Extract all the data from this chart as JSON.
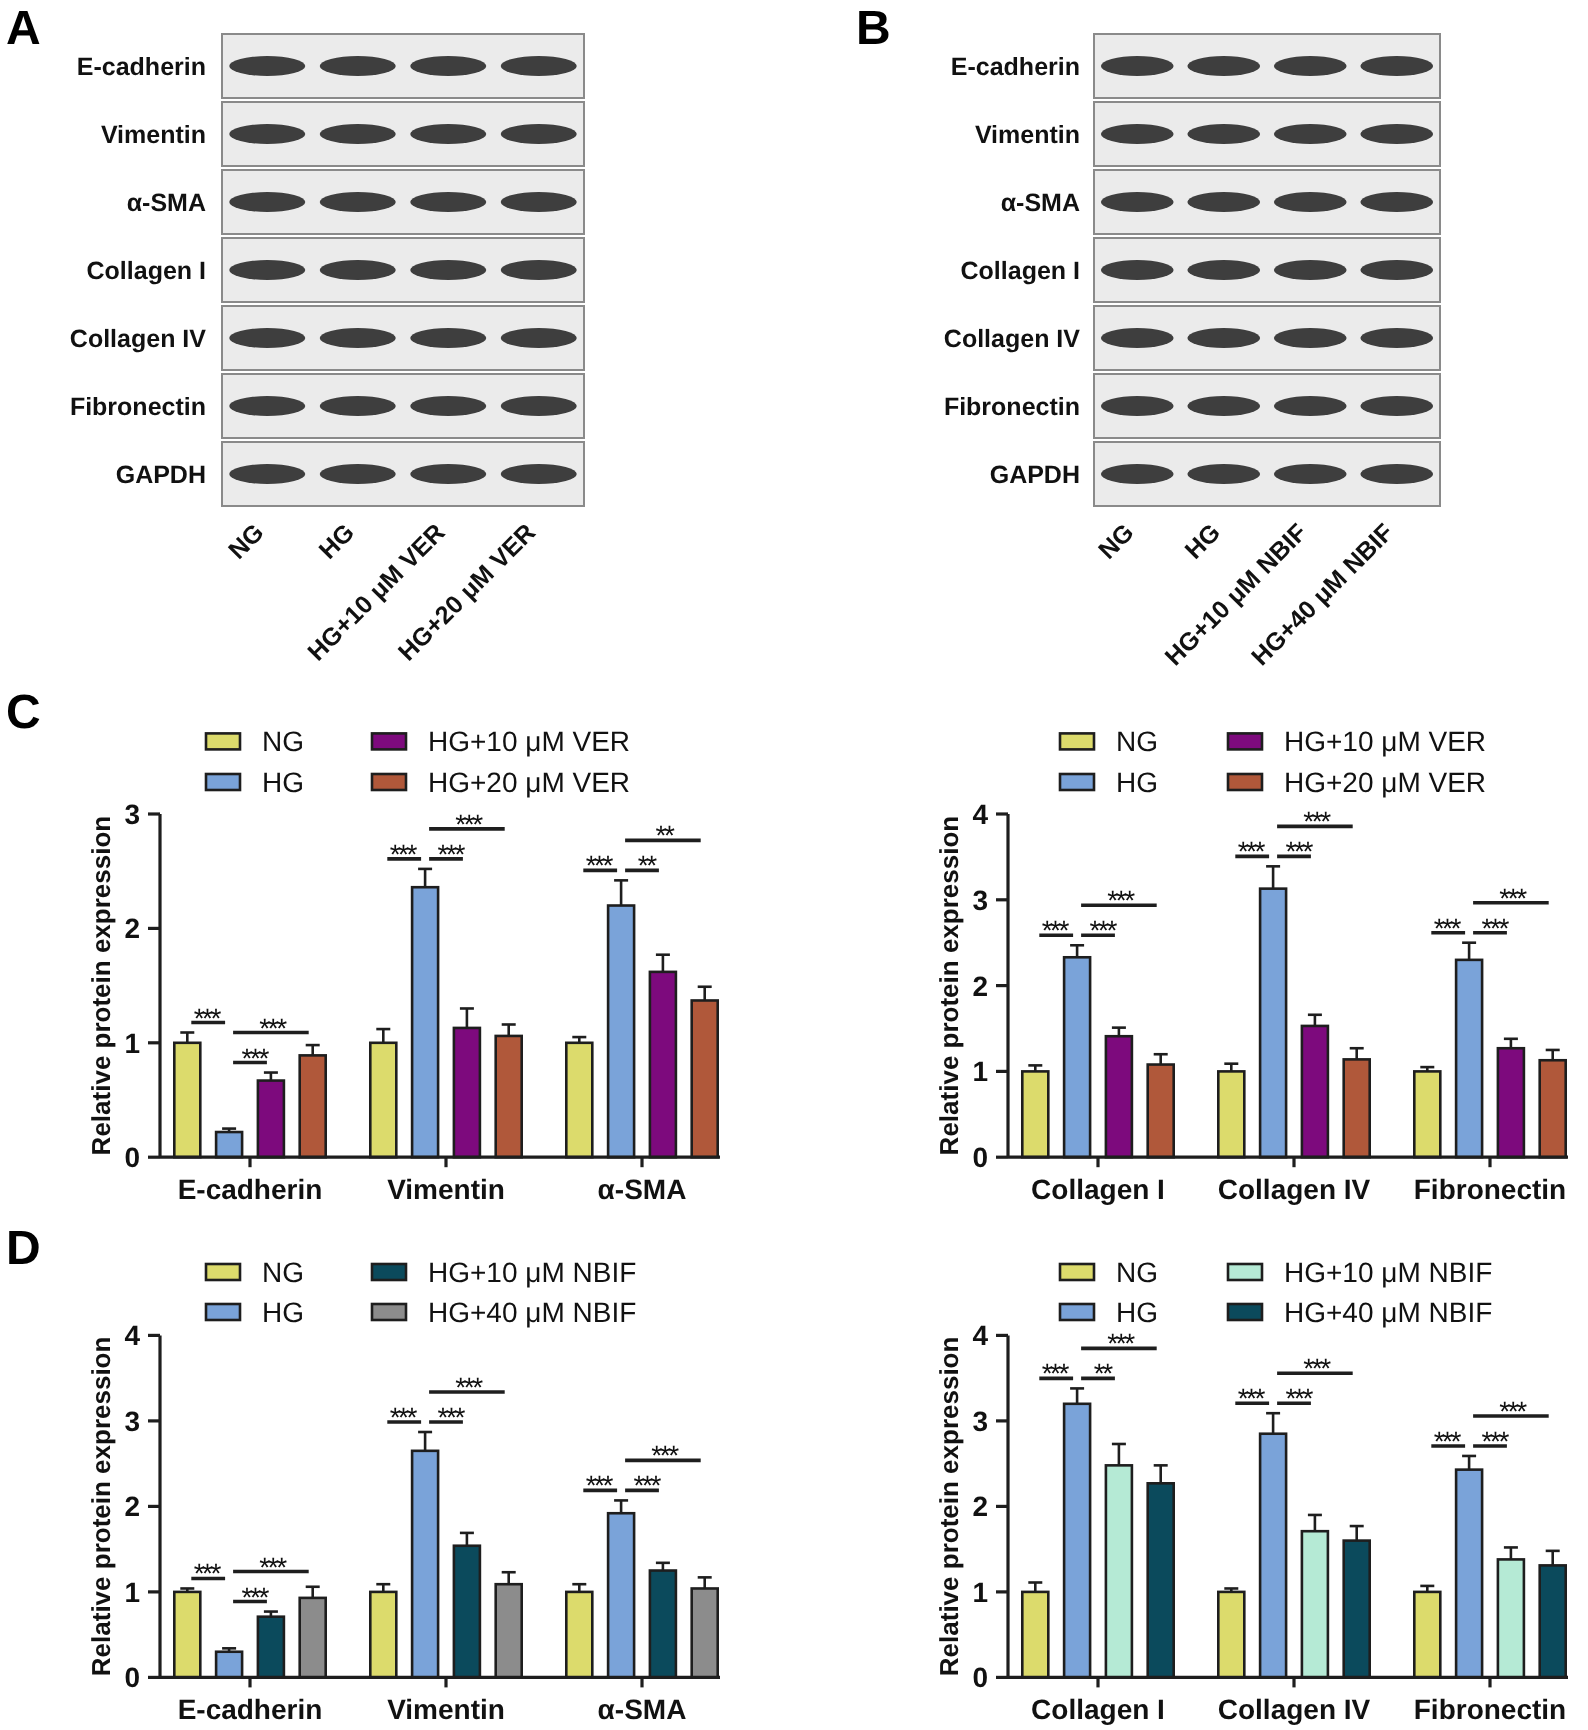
{
  "chart_data": [
    {
      "type": "other",
      "title": "A",
      "categories": [
        "NG",
        "HG",
        "HG+10 μM VER",
        "HG+20 μM VER"
      ],
      "y_categories": [
        "E-cadherin",
        "Vimentin",
        "α-SMA",
        "Collagen I",
        "Collagen IV",
        "Fibronectin",
        "GAPDH"
      ]
    },
    {
      "type": "other",
      "title": "B",
      "categories": [
        "NG",
        "HG",
        "HG+10 μM NBIF",
        "HG+40 μM NBIF"
      ],
      "y_categories": [
        "E-cadherin",
        "Vimentin",
        "α-SMA",
        "Collagen I",
        "Collagen IV",
        "Fibronectin",
        "GAPDH"
      ]
    },
    {
      "type": "bar",
      "title": "C",
      "ylabel": "Relative protein expression",
      "categories": [
        "E-cadherin",
        "Vimentin",
        "α-SMA"
      ],
      "ylim": [
        0,
        3
      ],
      "yticks": [
        0,
        1,
        2,
        3
      ],
      "legend": "top",
      "series": [
        {
          "name": "NG",
          "color": "#dcdb6c",
          "values": [
            1.0,
            1.0,
            1.0
          ],
          "errors": [
            0.09,
            0.12,
            0.05
          ]
        },
        {
          "name": "HG",
          "color": "#7aa3d9",
          "values": [
            0.22,
            2.36,
            2.2
          ],
          "errors": [
            0.03,
            0.16,
            0.22
          ]
        },
        {
          "name": "HG+10 μM VER",
          "color": "#7d0a7d",
          "values": [
            0.67,
            1.13,
            1.62
          ],
          "errors": [
            0.07,
            0.17,
            0.15
          ]
        },
        {
          "name": "HG+20 μM VER",
          "color": "#b0583a",
          "values": [
            0.89,
            1.06,
            1.37
          ],
          "errors": [
            0.09,
            0.1,
            0.12
          ]
        }
      ],
      "annotations": [
        "***",
        "***",
        "***",
        "***",
        "***",
        "***",
        "**",
        "***",
        "**"
      ]
    },
    {
      "type": "bar",
      "ylabel": "Relative protein expression",
      "categories": [
        "Collagen I",
        "Collagen IV",
        "Fibronectin"
      ],
      "ylim": [
        0,
        4
      ],
      "yticks": [
        0,
        1,
        2,
        3,
        4
      ],
      "legend": "top",
      "series": [
        {
          "name": "NG",
          "color": "#dcdb6c",
          "values": [
            1.0,
            1.0,
            1.0
          ],
          "errors": [
            0.07,
            0.09,
            0.05
          ]
        },
        {
          "name": "HG",
          "color": "#7aa3d9",
          "values": [
            2.33,
            3.13,
            2.3
          ],
          "errors": [
            0.14,
            0.26,
            0.2
          ]
        },
        {
          "name": "HG+10 μM VER",
          "color": "#7d0a7d",
          "values": [
            1.41,
            1.53,
            1.27
          ],
          "errors": [
            0.1,
            0.13,
            0.11
          ]
        },
        {
          "name": "HG+20 μM VER",
          "color": "#b0583a",
          "values": [
            1.08,
            1.14,
            1.13
          ],
          "errors": [
            0.12,
            0.13,
            0.12
          ]
        }
      ],
      "annotations": [
        "***",
        "***",
        "***",
        "***",
        "***",
        "***",
        "***",
        "***",
        "***"
      ]
    },
    {
      "type": "bar",
      "title": "D",
      "ylabel": "Relative protein expression",
      "categories": [
        "E-cadherin",
        "Vimentin",
        "α-SMA"
      ],
      "ylim": [
        0,
        4
      ],
      "yticks": [
        0,
        1,
        2,
        3,
        4
      ],
      "legend": "top",
      "series": [
        {
          "name": "NG",
          "color": "#dcdb6c",
          "values": [
            1.0,
            1.0,
            1.0
          ],
          "errors": [
            0.04,
            0.09,
            0.09
          ]
        },
        {
          "name": "HG",
          "color": "#7aa3d9",
          "values": [
            0.3,
            2.65,
            1.92
          ],
          "errors": [
            0.04,
            0.22,
            0.15
          ]
        },
        {
          "name": "HG+10 μM NBIF",
          "color": "#0b4a5c",
          "values": [
            0.71,
            1.54,
            1.25
          ],
          "errors": [
            0.06,
            0.15,
            0.09
          ]
        },
        {
          "name": "HG+40 μM NBIF",
          "color": "#8c8c8c",
          "values": [
            0.93,
            1.09,
            1.04
          ],
          "errors": [
            0.13,
            0.14,
            0.13
          ]
        }
      ],
      "annotations": [
        "***",
        "***",
        "***",
        "***",
        "***",
        "***",
        "***",
        "***",
        "***"
      ]
    },
    {
      "type": "bar",
      "ylabel": "Relative protein expression",
      "categories": [
        "Collagen I",
        "Collagen IV",
        "Fibronectin"
      ],
      "ylim": [
        0,
        4
      ],
      "yticks": [
        0,
        1,
        2,
        3,
        4
      ],
      "legend": "top",
      "series": [
        {
          "name": "NG",
          "color": "#dcdb6c",
          "values": [
            1.0,
            1.0,
            1.0
          ],
          "errors": [
            0.11,
            0.04,
            0.07
          ]
        },
        {
          "name": "HG",
          "color": "#7aa3d9",
          "values": [
            3.2,
            2.85,
            2.43
          ],
          "errors": [
            0.18,
            0.24,
            0.16
          ]
        },
        {
          "name": "HG+10 μM NBIF",
          "color": "#b5ead5",
          "values": [
            2.48,
            1.71,
            1.38
          ],
          "errors": [
            0.25,
            0.19,
            0.14
          ]
        },
        {
          "name": "HG+40 μM NBIF",
          "color": "#0b4a5c",
          "values": [
            2.27,
            1.6,
            1.31
          ],
          "errors": [
            0.21,
            0.17,
            0.17
          ]
        }
      ],
      "annotations": [
        "***",
        "***",
        "**",
        "***",
        "***",
        "***",
        "***",
        "***",
        "***"
      ]
    }
  ]
}
